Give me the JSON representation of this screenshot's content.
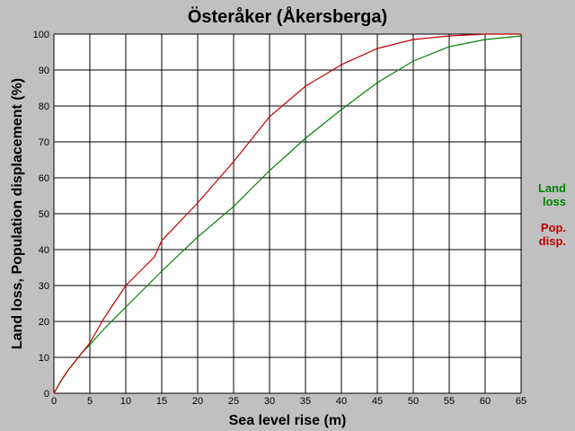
{
  "chart_data": {
    "type": "line",
    "title": "Österåker (Åkersberga)",
    "xlabel": "Sea level rise (m)",
    "ylabel": "Land loss, Population displacement (%)",
    "xlim": [
      0,
      65
    ],
    "ylim": [
      0,
      100
    ],
    "xticks": [
      0,
      5,
      10,
      15,
      20,
      25,
      30,
      35,
      40,
      45,
      50,
      55,
      60,
      65
    ],
    "yticks": [
      0,
      10,
      20,
      30,
      40,
      50,
      60,
      70,
      80,
      90,
      100
    ],
    "grid": true,
    "legend_position": "right",
    "series": [
      {
        "name": "Land loss",
        "legend_lines": [
          "Land",
          "loss"
        ],
        "color": "#008000",
        "x": [
          0,
          1,
          2,
          3,
          4,
          5,
          7,
          10,
          13,
          15,
          20,
          25,
          30,
          35,
          40,
          45,
          50,
          55,
          60,
          65
        ],
        "y": [
          0,
          3.5,
          6.5,
          9,
          11.5,
          13.5,
          18,
          24,
          30,
          34,
          43.5,
          52,
          62,
          71,
          79,
          86.5,
          92.5,
          96.5,
          98.5,
          99.5
        ]
      },
      {
        "name": "Pop. disp.",
        "legend_lines": [
          "Pop.",
          "disp."
        ],
        "color": "#c00000",
        "x": [
          0,
          1,
          2,
          3,
          4,
          5,
          7,
          10,
          12,
          14,
          15,
          20,
          25,
          30,
          35,
          40,
          45,
          50,
          55,
          60,
          65
        ],
        "y": [
          0,
          3.5,
          6.5,
          9,
          11.5,
          14,
          21,
          30,
          34,
          38,
          42.5,
          53,
          64.5,
          77,
          85.5,
          91.5,
          96,
          98.5,
          99.5,
          100,
          100
        ]
      }
    ]
  }
}
